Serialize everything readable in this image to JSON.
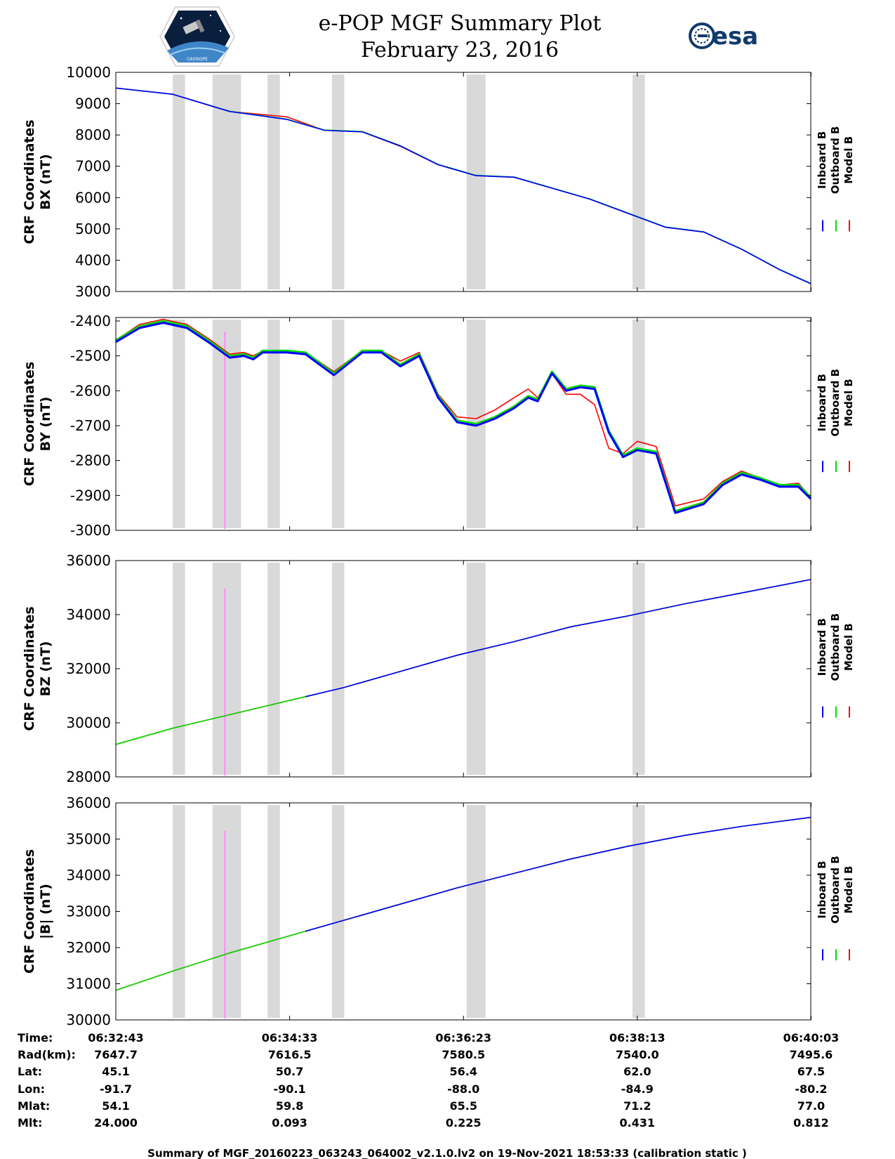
{
  "header": {
    "title_line1": "e-POP MGF Summary Plot",
    "title_line2": "February 23, 2016",
    "left_logo_text": "CASSIOPE",
    "right_logo_text": "esa"
  },
  "legend": {
    "entries": [
      "Inboard B",
      "Outboard B",
      "Model B"
    ],
    "colors": {
      "inboard": "#0000ff",
      "outboard": "#00dd00",
      "model": "#ff0000"
    }
  },
  "footer": "Summary of MGF_20160223_063243_064002_v2.1.0.lv2 on 19-Nov-2021 18:53:33 (calibration static )",
  "ephemeris": {
    "row_labels": [
      "Time:",
      "Rad(km):",
      "Lat:",
      "Lon:",
      "Mlat:",
      "Mlt:"
    ],
    "columns": [
      [
        "06:32:43",
        "7647.7",
        "45.1",
        "-91.7",
        "54.1",
        "24.000"
      ],
      [
        "06:34:33",
        "7616.5",
        "50.7",
        "-90.1",
        "59.8",
        "0.093"
      ],
      [
        "06:36:23",
        "7580.5",
        "56.4",
        "-88.0",
        "65.5",
        "0.225"
      ],
      [
        "06:38:13",
        "7540.0",
        "62.0",
        "-84.9",
        "71.2",
        "0.431"
      ],
      [
        "06:40:03",
        "7495.6",
        "67.5",
        "-80.2",
        "77.0",
        "0.812"
      ]
    ]
  },
  "chart_data": [
    {
      "type": "line",
      "ylabel_line1": "CRF Coordinates",
      "ylabel_line2": "BX (nT)",
      "ylim": [
        3000,
        10000
      ],
      "yticks": [
        3000,
        4000,
        5000,
        6000,
        7000,
        8000,
        9000,
        10000
      ],
      "x_minutes": [
        0,
        0.6,
        1.2,
        1.8,
        2.2,
        2.6,
        3.0,
        3.4,
        3.8,
        4.2,
        4.6,
        5.0,
        5.4,
        5.8,
        6.2,
        6.6,
        7.0,
        7.33
      ],
      "series": [
        {
          "name": "Inboard B",
          "values": [
            9500,
            9300,
            8750,
            8500,
            8150,
            8100,
            7650,
            7050,
            6700,
            6650,
            6300,
            5950,
            5500,
            5050,
            4900,
            4350,
            3700,
            3250
          ]
        },
        {
          "name": "Outboard B",
          "values": [
            9500,
            9300,
            8760,
            8510,
            8160,
            8110,
            7660,
            7060,
            6710,
            6660,
            6310,
            5960,
            5510,
            5060,
            4910,
            4360,
            3710,
            3260
          ]
        },
        {
          "name": "Model B",
          "values": [
            9500,
            9300,
            8750,
            8580,
            8150,
            8100,
            7640,
            7050,
            6700,
            6650,
            6300,
            5950,
            5500,
            5050,
            4900,
            4350,
            3700,
            3250
          ]
        }
      ]
    },
    {
      "type": "line",
      "ylabel_line1": "CRF Coordinates",
      "ylabel_line2": "BY (nT)",
      "ylim": [
        -3000,
        -2390
      ],
      "yticks": [
        -3000,
        -2900,
        -2800,
        -2700,
        -2600,
        -2500,
        -2400
      ],
      "x_minutes": [
        0,
        0.25,
        0.5,
        0.75,
        1.0,
        1.2,
        1.35,
        1.45,
        1.55,
        1.65,
        1.8,
        2.0,
        2.3,
        2.6,
        2.8,
        3.0,
        3.2,
        3.4,
        3.6,
        3.8,
        4.0,
        4.2,
        4.35,
        4.45,
        4.6,
        4.75,
        4.9,
        5.05,
        5.2,
        5.35,
        5.5,
        5.7,
        5.9,
        6.2,
        6.4,
        6.6,
        6.8,
        7.0,
        7.2,
        7.33
      ],
      "series": [
        {
          "name": "Inboard B",
          "values": [
            -2460,
            -2420,
            -2405,
            -2420,
            -2465,
            -2505,
            -2500,
            -2510,
            -2490,
            -2490,
            -2490,
            -2495,
            -2555,
            -2490,
            -2490,
            -2530,
            -2500,
            -2620,
            -2690,
            -2700,
            -2680,
            -2650,
            -2620,
            -2630,
            -2550,
            -2600,
            -2590,
            -2595,
            -2720,
            -2790,
            -2770,
            -2780,
            -2950,
            -2925,
            -2870,
            -2840,
            -2855,
            -2875,
            -2875,
            -2910
          ]
        },
        {
          "name": "Outboard B",
          "values": [
            -2455,
            -2415,
            -2400,
            -2415,
            -2460,
            -2500,
            -2495,
            -2505,
            -2485,
            -2485,
            -2485,
            -2490,
            -2550,
            -2485,
            -2485,
            -2525,
            -2495,
            -2615,
            -2685,
            -2695,
            -2675,
            -2645,
            -2615,
            -2625,
            -2545,
            -2595,
            -2585,
            -2590,
            -2715,
            -2785,
            -2765,
            -2775,
            -2945,
            -2920,
            -2865,
            -2835,
            -2850,
            -2870,
            -2870,
            -2905
          ]
        },
        {
          "name": "Model B",
          "values": [
            -2455,
            -2410,
            -2395,
            -2410,
            -2455,
            -2495,
            -2490,
            -2500,
            -2485,
            -2485,
            -2485,
            -2490,
            -2545,
            -2485,
            -2485,
            -2515,
            -2490,
            -2610,
            -2675,
            -2680,
            -2655,
            -2620,
            -2595,
            -2620,
            -2550,
            -2610,
            -2610,
            -2640,
            -2765,
            -2780,
            -2745,
            -2760,
            -2930,
            -2910,
            -2860,
            -2830,
            -2850,
            -2870,
            -2865,
            -2905
          ]
        }
      ]
    },
    {
      "type": "line",
      "ylabel_line1": "CRF Coordinates",
      "ylabel_line2": "BZ (nT)",
      "ylim": [
        28000,
        36000
      ],
      "yticks": [
        28000,
        30000,
        32000,
        34000,
        36000
      ],
      "x_minutes": [
        0,
        0.6,
        1.2,
        1.8,
        2.4,
        3.0,
        3.6,
        4.2,
        4.8,
        5.4,
        6.0,
        6.6,
        7.33
      ],
      "series": [
        {
          "name": "Inboard B",
          "values": [
            29200,
            29800,
            30300,
            30800,
            31300,
            31900,
            32500,
            33000,
            33550,
            33950,
            34400,
            34800,
            35300
          ]
        },
        {
          "name": "Outboard B",
          "values": [
            29200,
            29800,
            30300,
            30800,
            31300,
            31900,
            32500,
            33000,
            33550,
            33950,
            34400,
            34800,
            35300
          ]
        },
        {
          "name": "Model B",
          "values": [
            29200,
            29800,
            30300,
            30800,
            31300,
            31900,
            32500,
            33000,
            33550,
            33950,
            34400,
            34800,
            35300
          ]
        }
      ]
    },
    {
      "type": "line",
      "ylabel_line1": "CRF Coordinates",
      "ylabel_line2": "|B| (nT)",
      "ylim": [
        30000,
        36000
      ],
      "yticks": [
        30000,
        31000,
        32000,
        33000,
        34000,
        35000,
        36000
      ],
      "x_minutes": [
        0,
        0.6,
        1.2,
        1.8,
        2.4,
        3.0,
        3.6,
        4.2,
        4.8,
        5.4,
        6.0,
        6.6,
        7.33
      ],
      "series": [
        {
          "name": "Inboard B",
          "values": [
            30820,
            31350,
            31850,
            32300,
            32750,
            33200,
            33650,
            34050,
            34450,
            34800,
            35100,
            35350,
            35600
          ]
        },
        {
          "name": "Outboard B",
          "values": [
            30820,
            31350,
            31850,
            32300,
            32750,
            33200,
            33650,
            34050,
            34450,
            34800,
            35100,
            35350,
            35600
          ]
        },
        {
          "name": "Model B",
          "values": [
            30820,
            31350,
            31850,
            32300,
            32750,
            33200,
            33650,
            34050,
            34450,
            34800,
            35100,
            35350,
            35600
          ]
        }
      ]
    }
  ],
  "gray_bands_minutes": [
    [
      0.6,
      0.73
    ],
    [
      1.02,
      1.32
    ],
    [
      1.6,
      1.73
    ],
    [
      2.28,
      2.41
    ],
    [
      3.7,
      3.9
    ],
    [
      5.45,
      5.58
    ]
  ],
  "outboard_segment_end_minutes": 2.0,
  "x_range_minutes": [
    0,
    7.33
  ]
}
